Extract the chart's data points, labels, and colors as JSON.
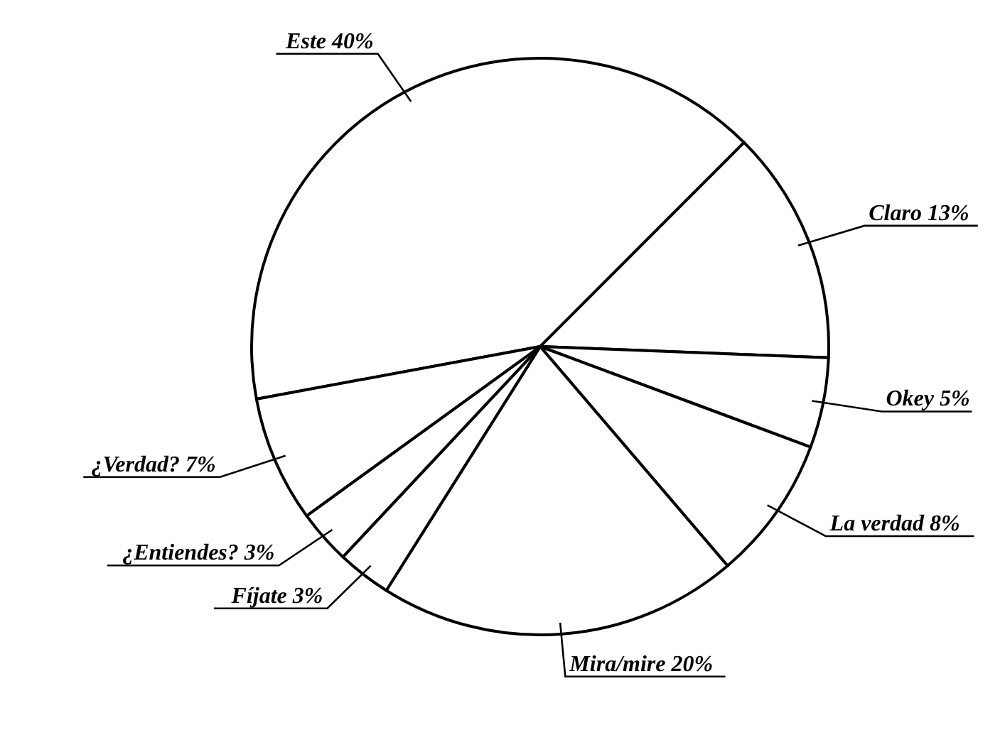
{
  "chart_data": {
    "type": "pie",
    "categories": [
      "Este",
      "Claro",
      "Okey",
      "La verdad",
      "Mira/mire",
      "Fíjate",
      "¿Entiendes?",
      "¿Verdad?"
    ],
    "values": [
      40,
      13,
      5,
      8,
      20,
      3,
      3,
      7
    ],
    "colors": [
      "#ffffff",
      "#ffffff",
      "#ffffff",
      "#ffffff",
      "#ffffff",
      "#ffffff",
      "#ffffff",
      "#ffffff"
    ],
    "value_labels": [
      "40%",
      "13%",
      "5%",
      "8%",
      "20%",
      "3%",
      "3%",
      "7%"
    ],
    "legend": false
  }
}
